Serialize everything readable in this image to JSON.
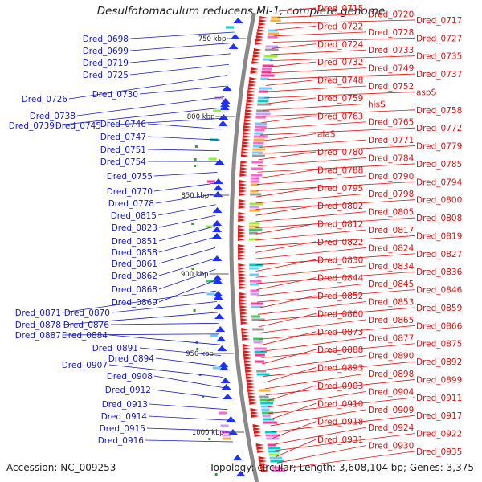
{
  "title": "Desulfotomaculum reducens MI-1, complete genome",
  "accession": "Accession: NC_009253",
  "summary": "Topology: circular; Length: 3,608,104 bp; Genes: 3,375",
  "colors": {
    "left_label": "#1a1ab8",
    "right_label": "#e01010",
    "left_gene": "#1f2fff",
    "right_gene": "#ee1111",
    "backbone": "#8a8a8a"
  },
  "scale_ticks": [
    "750 kbp",
    "800 kbp",
    "850 kbp",
    "900 kbp",
    "950 kbp",
    "1000 kbp"
  ],
  "left_labels": [
    "Dred_0698",
    "Dred_0699",
    "Dred_0719",
    "Dred_0725",
    "Dred_0726",
    "Dred_0730",
    "Dred_0738",
    "Dred_0739",
    "Dred_0745",
    "Dred_0746",
    "Dred_0747",
    "Dred_0751",
    "Dred_0754",
    "Dred_0755",
    "Dred_0770",
    "Dred_0778",
    "Dred_0815",
    "Dred_0823",
    "Dred_0851",
    "Dred_0858",
    "Dred_0861",
    "Dred_0862",
    "Dred_0868",
    "Dred_0869",
    "Dred_0871",
    "Dred_0870",
    "Dred_0878",
    "Dred_0876",
    "Dred_0887",
    "Dred_0884",
    "Dred_0891",
    "Dred_0894",
    "Dred_0907",
    "Dred_0908",
    "Dred_0912",
    "Dred_0913",
    "Dred_0914",
    "Dred_0915",
    "Dred_0916"
  ],
  "right_labels": [
    "Dred_0715",
    "Dred_0720",
    "Dred_0717",
    "Dred_0722",
    "Dred_0728",
    "Dred_0727",
    "Dred_0724",
    "Dred_0733",
    "Dred_0735",
    "Dred_0732",
    "Dred_0749",
    "Dred_0737",
    "Dred_0748",
    "Dred_0752",
    "aspS",
    "Dred_0759",
    "hisS",
    "Dred_0758",
    "Dred_0763",
    "Dred_0765",
    "Dred_0772",
    "alaS",
    "Dred_0771",
    "Dred_0779",
    "Dred_0780",
    "Dred_0784",
    "Dred_0785",
    "Dred_0788",
    "Dred_0790",
    "Dred_0794",
    "Dred_0795",
    "Dred_0798",
    "Dred_0800",
    "Dred_0802",
    "Dred_0805",
    "Dred_0808",
    "Dred_0812",
    "Dred_0817",
    "Dred_0819",
    "Dred_0822",
    "Dred_0824",
    "Dred_0827",
    "Dred_0830",
    "Dred_0834",
    "Dred_0836",
    "Dred_0844",
    "Dred_0845",
    "Dred_0846",
    "Dred_0852",
    "Dred_0853",
    "Dred_0859",
    "Dred_0860",
    "Dred_0865",
    "Dred_0866",
    "Dred_0873",
    "Dred_0877",
    "Dred_0875",
    "Dred_0888",
    "Dred_0890",
    "Dred_0892",
    "Dred_0893",
    "Dred_0898",
    "Dred_0899",
    "Dred_0903",
    "Dred_0904",
    "Dred_0911",
    "Dred_0910",
    "Dred_0909",
    "Dred_0917",
    "Dred_0918",
    "Dred_0924",
    "Dred_0922",
    "Dred_0931",
    "Dred_0930",
    "Dred_0935"
  ]
}
